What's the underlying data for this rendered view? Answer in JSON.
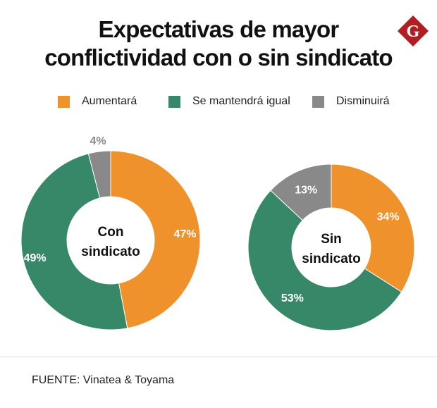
{
  "title_lines": [
    "Expectativas de mayor",
    "conflictividad con o sin sindicato"
  ],
  "logo": {
    "icon": "diamond-g-logo",
    "letter": "G",
    "color": "#b01e23"
  },
  "legend": [
    {
      "label": "Aumentará",
      "color": "#f0922b"
    },
    {
      "label": "Se mantendrá igual",
      "color": "#378869"
    },
    {
      "label": "Disminuirá",
      "color": "#898989"
    }
  ],
  "chart_data": [
    {
      "type": "pie",
      "variant": "donut",
      "center_label": [
        "Con",
        "sindicato"
      ],
      "categories": [
        "Aumentará",
        "Se mantendrá igual",
        "Disminuirá"
      ],
      "values": [
        47,
        49,
        4
      ],
      "data_labels": [
        "47%",
        "49%",
        "4%"
      ],
      "colors": [
        "#f0922b",
        "#378869",
        "#898989"
      ],
      "start": "top",
      "direction": "clockwise"
    },
    {
      "type": "pie",
      "variant": "donut",
      "center_label": [
        "Sin",
        "sindicato"
      ],
      "categories": [
        "Aumentará",
        "Se mantendrá igual",
        "Disminuirá"
      ],
      "values": [
        34,
        53,
        13
      ],
      "data_labels": [
        "34%",
        "53%",
        "13%"
      ],
      "colors": [
        "#f0922b",
        "#378869",
        "#898989"
      ],
      "start": "top",
      "direction": "clockwise"
    }
  ],
  "source": "FUENTE: Vinatea & Toyama"
}
